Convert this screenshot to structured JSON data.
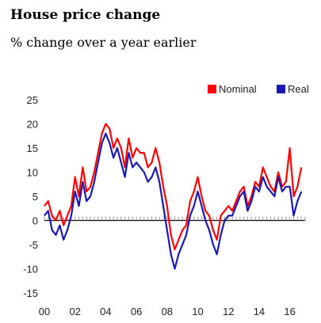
{
  "title": "House price change",
  "subtitle": "% change over a year earlier",
  "chart_data": {
    "type": "line",
    "title": "House price change",
    "subtitle": "% change over a year earlier",
    "xlabel": "",
    "ylabel": "",
    "xlim": [
      2000,
      2017
    ],
    "ylim": [
      -15,
      25
    ],
    "y_ticks": [
      25,
      20,
      15,
      10,
      5,
      0,
      -5,
      -10,
      -15
    ],
    "x_ticks": [
      "00",
      "02",
      "04",
      "06",
      "08",
      "10",
      "12",
      "14",
      "16"
    ],
    "x_tick_values": [
      2000,
      2002,
      2004,
      2006,
      2008,
      2010,
      2012,
      2014,
      2016
    ],
    "grid": false,
    "legend_position": "top-right",
    "series": [
      {
        "name": "Nominal",
        "color": "#ff0000",
        "x": [
          2000.0,
          2000.25,
          2000.5,
          2000.75,
          2001.0,
          2001.25,
          2001.5,
          2001.75,
          2002.0,
          2002.25,
          2002.5,
          2002.75,
          2003.0,
          2003.25,
          2003.5,
          2003.75,
          2004.0,
          2004.25,
          2004.5,
          2004.75,
          2005.0,
          2005.25,
          2005.5,
          2005.75,
          2006.0,
          2006.25,
          2006.5,
          2006.75,
          2007.0,
          2007.25,
          2007.5,
          2007.75,
          2008.0,
          2008.25,
          2008.5,
          2008.75,
          2009.0,
          2009.25,
          2009.5,
          2009.75,
          2010.0,
          2010.25,
          2010.5,
          2010.75,
          2011.0,
          2011.25,
          2011.5,
          2011.75,
          2012.0,
          2012.25,
          2012.5,
          2012.75,
          2013.0,
          2013.25,
          2013.5,
          2013.75,
          2014.0,
          2014.25,
          2014.5,
          2014.75,
          2015.0,
          2015.25,
          2015.5,
          2015.75,
          2016.0,
          2016.25,
          2016.5,
          2016.75
        ],
        "values": [
          3,
          4,
          1,
          0,
          2,
          -1,
          1,
          3,
          9,
          5,
          11,
          6,
          7,
          10,
          14,
          18,
          20,
          19,
          15,
          17,
          15,
          11,
          17,
          13,
          15,
          14,
          14,
          11,
          12,
          15,
          12,
          7,
          3,
          -3,
          -6,
          -4,
          -2,
          -1,
          4,
          6,
          9,
          5,
          2,
          1,
          -2,
          -4,
          1,
          2,
          3,
          2,
          4,
          6,
          7,
          3,
          5,
          8,
          7,
          11,
          9,
          7,
          6,
          10,
          7,
          8,
          15,
          5,
          7,
          11
        ]
      },
      {
        "name": "Real",
        "color": "#1a1ab0",
        "x": [
          2000.0,
          2000.25,
          2000.5,
          2000.75,
          2001.0,
          2001.25,
          2001.5,
          2001.75,
          2002.0,
          2002.25,
          2002.5,
          2002.75,
          2003.0,
          2003.25,
          2003.5,
          2003.75,
          2004.0,
          2004.25,
          2004.5,
          2004.75,
          2005.0,
          2005.25,
          2005.5,
          2005.75,
          2006.0,
          2006.25,
          2006.5,
          2006.75,
          2007.0,
          2007.25,
          2007.5,
          2007.75,
          2008.0,
          2008.25,
          2008.5,
          2008.75,
          2009.0,
          2009.25,
          2009.5,
          2009.75,
          2010.0,
          2010.25,
          2010.5,
          2010.75,
          2011.0,
          2011.25,
          2011.5,
          2011.75,
          2012.0,
          2012.25,
          2012.5,
          2012.75,
          2013.0,
          2013.25,
          2013.5,
          2013.75,
          2014.0,
          2014.25,
          2014.5,
          2014.75,
          2015.0,
          2015.25,
          2015.5,
          2015.75,
          2016.0,
          2016.25,
          2016.5,
          2016.75
        ],
        "values": [
          1,
          2,
          -2,
          -3,
          -1,
          -4,
          -2,
          1,
          6,
          3,
          8,
          4,
          5,
          8,
          12,
          16,
          18,
          16,
          13,
          15,
          12,
          9,
          14,
          11,
          12,
          11,
          10,
          8,
          9,
          11,
          8,
          3,
          -2,
          -7,
          -10,
          -7,
          -5,
          -3,
          1,
          3,
          6,
          3,
          0,
          -2,
          -5,
          -7,
          -3,
          0,
          1,
          1,
          3,
          5,
          6,
          2,
          4,
          7,
          6,
          9,
          7,
          6,
          5,
          9,
          6,
          7,
          7,
          1,
          4,
          6
        ]
      }
    ]
  }
}
